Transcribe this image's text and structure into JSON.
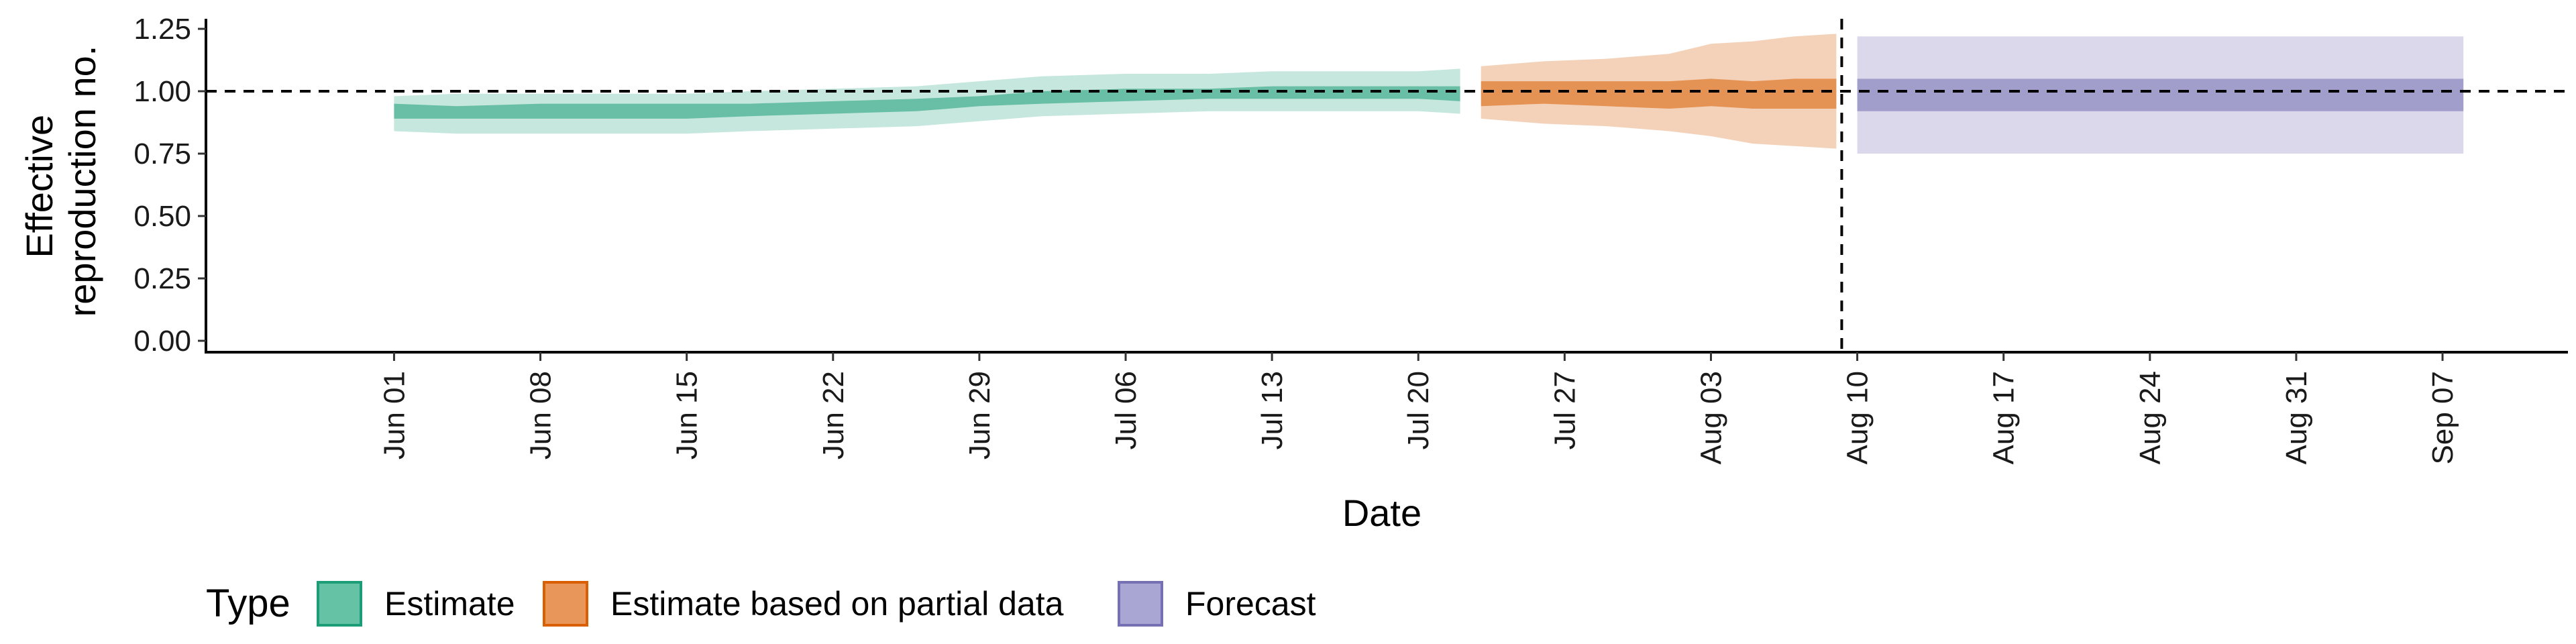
{
  "chart_data": {
    "type": "area",
    "xlabel": "Date",
    "ylabel_lines": [
      "Effective",
      "reproduction no."
    ],
    "ylim": [
      0,
      1.25
    ],
    "yticks": [
      "0.00",
      "0.25",
      "0.50",
      "0.75",
      "1.00",
      "1.25"
    ],
    "ytick_values": [
      0,
      0.25,
      0.5,
      0.75,
      1.0,
      1.25
    ],
    "x_range": [
      "2020-05-23",
      "2020-09-13"
    ],
    "x_ticks": [
      {
        "date": "2020-06-01",
        "label": "Jun 01"
      },
      {
        "date": "2020-06-08",
        "label": "Jun 08"
      },
      {
        "date": "2020-06-15",
        "label": "Jun 15"
      },
      {
        "date": "2020-06-22",
        "label": "Jun 22"
      },
      {
        "date": "2020-06-29",
        "label": "Jun 29"
      },
      {
        "date": "2020-07-06",
        "label": "Jul 06"
      },
      {
        "date": "2020-07-13",
        "label": "Jul 13"
      },
      {
        "date": "2020-07-20",
        "label": "Jul 20"
      },
      {
        "date": "2020-07-27",
        "label": "Jul 27"
      },
      {
        "date": "2020-08-03",
        "label": "Aug 03"
      },
      {
        "date": "2020-08-10",
        "label": "Aug 10"
      },
      {
        "date": "2020-08-17",
        "label": "Aug 17"
      },
      {
        "date": "2020-08-24",
        "label": "Aug 24"
      },
      {
        "date": "2020-08-31",
        "label": "Aug 31"
      },
      {
        "date": "2020-09-07",
        "label": "Sep 07"
      }
    ],
    "hline": 1.0,
    "vline_date": "2020-08-09",
    "grid": false,
    "legend": {
      "position": "bottom",
      "title": "Type",
      "entries": [
        {
          "label": "Estimate",
          "fill": "#66c2a5",
          "border": "#1b9e77"
        },
        {
          "label": "Estimate based on partial data",
          "fill": "#e8965a",
          "border": "#d95f02"
        },
        {
          "label": "Forecast",
          "fill": "#a9a6d4",
          "border": "#7570b3"
        }
      ]
    },
    "series": [
      {
        "name": "Estimate",
        "color": "#1b9e77",
        "outer_opacity": 0.25,
        "inner_opacity": 0.55,
        "points": [
          {
            "date": "2020-06-01",
            "lo90": 0.84,
            "lo50": 0.89,
            "hi50": 0.95,
            "hi90": 0.98
          },
          {
            "date": "2020-06-04",
            "lo90": 0.83,
            "lo50": 0.89,
            "hi50": 0.94,
            "hi90": 0.99
          },
          {
            "date": "2020-06-08",
            "lo90": 0.83,
            "lo50": 0.89,
            "hi50": 0.95,
            "hi90": 0.99
          },
          {
            "date": "2020-06-12",
            "lo90": 0.83,
            "lo50": 0.89,
            "hi50": 0.95,
            "hi90": 0.99
          },
          {
            "date": "2020-06-15",
            "lo90": 0.83,
            "lo50": 0.89,
            "hi50": 0.95,
            "hi90": 0.99
          },
          {
            "date": "2020-06-18",
            "lo90": 0.84,
            "lo50": 0.9,
            "hi50": 0.95,
            "hi90": 1.0
          },
          {
            "date": "2020-06-22",
            "lo90": 0.85,
            "lo50": 0.91,
            "hi50": 0.96,
            "hi90": 1.01
          },
          {
            "date": "2020-06-26",
            "lo90": 0.86,
            "lo50": 0.92,
            "hi50": 0.97,
            "hi90": 1.02
          },
          {
            "date": "2020-06-29",
            "lo90": 0.88,
            "lo50": 0.94,
            "hi50": 0.98,
            "hi90": 1.04
          },
          {
            "date": "2020-07-02",
            "lo90": 0.9,
            "lo50": 0.95,
            "hi50": 1.0,
            "hi90": 1.06
          },
          {
            "date": "2020-07-06",
            "lo90": 0.91,
            "lo50": 0.96,
            "hi50": 1.01,
            "hi90": 1.07
          },
          {
            "date": "2020-07-10",
            "lo90": 0.92,
            "lo50": 0.97,
            "hi50": 1.01,
            "hi90": 1.07
          },
          {
            "date": "2020-07-13",
            "lo90": 0.92,
            "lo50": 0.97,
            "hi50": 1.02,
            "hi90": 1.08
          },
          {
            "date": "2020-07-17",
            "lo90": 0.92,
            "lo50": 0.97,
            "hi50": 1.02,
            "hi90": 1.08
          },
          {
            "date": "2020-07-20",
            "lo90": 0.92,
            "lo50": 0.97,
            "hi50": 1.02,
            "hi90": 1.08
          },
          {
            "date": "2020-07-22",
            "lo90": 0.91,
            "lo50": 0.96,
            "hi50": 1.02,
            "hi90": 1.09
          }
        ]
      },
      {
        "name": "Estimate based on partial data",
        "color": "#d95f02",
        "outer_opacity": 0.28,
        "inner_opacity": 0.55,
        "points": [
          {
            "date": "2020-07-23",
            "lo90": 0.89,
            "lo50": 0.94,
            "hi50": 1.04,
            "hi90": 1.1
          },
          {
            "date": "2020-07-26",
            "lo90": 0.87,
            "lo50": 0.95,
            "hi50": 1.04,
            "hi90": 1.12
          },
          {
            "date": "2020-07-29",
            "lo90": 0.86,
            "lo50": 0.94,
            "hi50": 1.04,
            "hi90": 1.13
          },
          {
            "date": "2020-08-01",
            "lo90": 0.84,
            "lo50": 0.93,
            "hi50": 1.04,
            "hi90": 1.15
          },
          {
            "date": "2020-08-03",
            "lo90": 0.82,
            "lo50": 0.94,
            "hi50": 1.05,
            "hi90": 1.19
          },
          {
            "date": "2020-08-05",
            "lo90": 0.79,
            "lo50": 0.93,
            "hi50": 1.04,
            "hi90": 1.2
          },
          {
            "date": "2020-08-07",
            "lo90": 0.78,
            "lo50": 0.93,
            "hi50": 1.05,
            "hi90": 1.22
          },
          {
            "date": "2020-08-09",
            "lo90": 0.77,
            "lo50": 0.93,
            "hi50": 1.05,
            "hi90": 1.23
          }
        ]
      },
      {
        "name": "Forecast",
        "color": "#7570b3",
        "outer_opacity": 0.27,
        "inner_opacity": 0.55,
        "points": [
          {
            "date": "2020-08-10",
            "lo90": 0.75,
            "lo50": 0.92,
            "hi50": 1.05,
            "hi90": 1.22
          },
          {
            "date": "2020-09-08",
            "lo90": 0.75,
            "lo50": 0.92,
            "hi50": 1.05,
            "hi90": 1.22
          }
        ]
      }
    ]
  }
}
